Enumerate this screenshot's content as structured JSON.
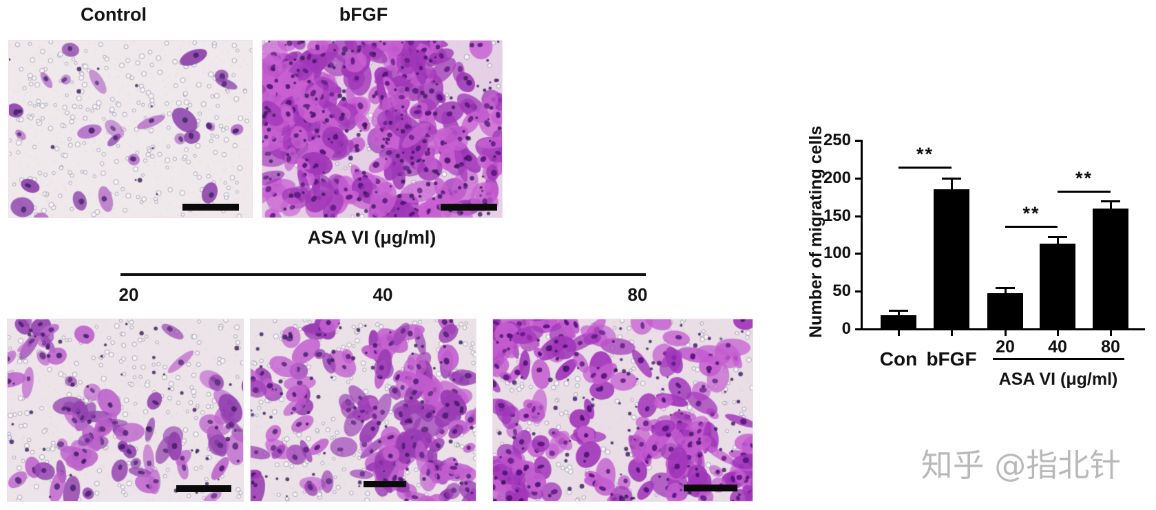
{
  "figure": {
    "background": "#ffffff",
    "watermark": {
      "text": "知乎 @指北针",
      "color": "#b9b9b9"
    },
    "group_header": {
      "label": "ASA VI (μg/ml)"
    },
    "panels": {
      "top": [
        {
          "id": "control",
          "label": "Control",
          "render": {
            "bg": "#efe9eb",
            "pores": 280,
            "cells": 26,
            "c1": "#b66fc9",
            "c2": "#8f46ad",
            "nuc": "#46266e",
            "seed": 11,
            "scale": 1.0
          }
        },
        {
          "id": "bfgf",
          "label": "bFGF",
          "render": {
            "bg": "#e6d0e6",
            "pores": 170,
            "cells": 340,
            "c1": "#c860d2",
            "c2": "#a037b8",
            "nuc": "#521279",
            "seed": 23,
            "scale": 1.25
          }
        }
      ],
      "bottom": [
        {
          "id": "asa20",
          "label": "20",
          "render": {
            "bg": "#ece4e8",
            "pores": 260,
            "cells": 95,
            "c1": "#bd63cc",
            "c2": "#9442b0",
            "nuc": "#4a2070",
            "seed": 37,
            "scale": 1.05
          }
        },
        {
          "id": "asa40",
          "label": "40",
          "render": {
            "bg": "#ebe2e7",
            "pores": 250,
            "cells": 160,
            "c1": "#c25ecf",
            "c2": "#9a3cb4",
            "nuc": "#4e1c74",
            "seed": 53,
            "scale": 1.1
          }
        },
        {
          "id": "asa80",
          "label": "80",
          "render": {
            "bg": "#e9dde6",
            "pores": 240,
            "cells": 230,
            "c1": "#c45bd0",
            "c2": "#a135ba",
            "nuc": "#500f78",
            "seed": 71,
            "scale": 1.15
          }
        }
      ]
    }
  },
  "chart_data": {
    "type": "bar",
    "title": "",
    "xlabel": "",
    "ylabel": "Number of migrating cells",
    "ylim": [
      0,
      250
    ],
    "yticks": [
      0,
      50,
      100,
      150,
      200,
      250
    ],
    "grid": false,
    "legend": "none",
    "bar_color": "#000000",
    "categories": [
      "Con",
      "bFGF",
      "20",
      "40",
      "80"
    ],
    "values": [
      18,
      185,
      47,
      113,
      160
    ],
    "errors": [
      7,
      15,
      8,
      9,
      10
    ],
    "group_label": "ASA VI (μg/ml)",
    "group_members": [
      "20",
      "40",
      "80"
    ],
    "significance": [
      {
        "from": "Con",
        "to": "bFGF",
        "label": "**",
        "y": 215
      },
      {
        "from": "20",
        "to": "40",
        "label": "**",
        "y": 137
      },
      {
        "from": "40",
        "to": "80",
        "label": "**",
        "y": 183
      }
    ]
  }
}
